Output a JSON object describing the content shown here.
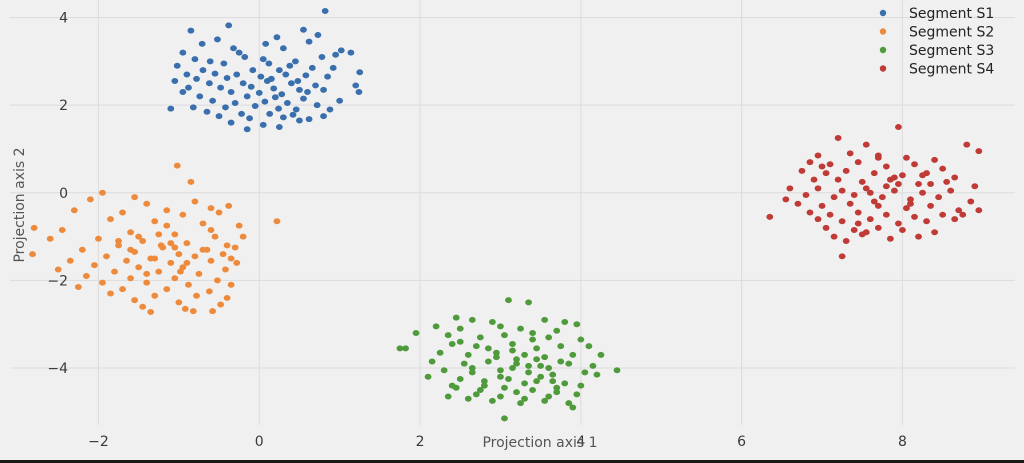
{
  "chart_data": {
    "type": "scatter",
    "title": "",
    "xlabel": "Projection axis 1",
    "ylabel": "Projection axis 2",
    "xlim": [
      -3.1,
      9.4
    ],
    "ylim": [
      -5.3,
      4.4
    ],
    "xticks": [
      -2,
      0,
      2,
      4,
      6,
      8
    ],
    "yticks": [
      -4,
      -2,
      0,
      2,
      4
    ],
    "grid": true,
    "legend_position": "top-right",
    "series": [
      {
        "name": "Segment S1",
        "color": "#3a6fad",
        "x": [
          0.82,
          -0.38,
          0.55,
          0.73,
          -0.85,
          -0.52,
          0.22,
          0.08,
          -0.71,
          -0.32,
          0.62,
          1.02,
          -0.95,
          -0.25,
          0.3,
          0.95,
          1.14,
          -0.8,
          -0.61,
          -0.18,
          0.05,
          0.45,
          0.78,
          -1.02,
          -0.44,
          0.12,
          0.38,
          0.66,
          -0.7,
          -0.08,
          0.25,
          0.92,
          1.25,
          -0.9,
          -0.55,
          -0.28,
          0.02,
          0.33,
          0.58,
          -0.78,
          -0.4,
          0.15,
          0.48,
          0.85,
          -1.05,
          -0.62,
          -0.2,
          0.1,
          0.4,
          0.7,
          1.2,
          -0.88,
          -0.48,
          -0.1,
          0.18,
          0.5,
          0.8,
          -0.95,
          -0.35,
          0.0,
          0.28,
          0.6,
          -0.74,
          -0.15,
          0.2,
          0.55,
          1.0,
          -0.58,
          -0.3,
          0.07,
          0.35,
          0.72,
          -0.82,
          -0.42,
          -0.05,
          0.24,
          0.46,
          0.88,
          -0.65,
          -0.22,
          0.13,
          0.42,
          -0.5,
          -0.12,
          0.3,
          0.62,
          1.24,
          -0.35,
          0.05,
          0.5,
          0.8,
          -1.1,
          -0.15,
          0.25,
          0.15
        ],
        "y": [
          4.15,
          3.82,
          3.72,
          3.6,
          3.7,
          3.5,
          3.55,
          3.4,
          3.4,
          3.3,
          3.45,
          3.25,
          3.2,
          3.2,
          3.3,
          3.15,
          3.2,
          3.05,
          3.0,
          3.1,
          3.05,
          3.0,
          3.1,
          2.9,
          2.95,
          2.95,
          2.9,
          2.85,
          2.8,
          2.8,
          2.8,
          2.85,
          2.75,
          2.7,
          2.72,
          2.7,
          2.65,
          2.7,
          2.68,
          2.6,
          2.62,
          2.6,
          2.55,
          2.65,
          2.55,
          2.5,
          2.5,
          2.55,
          2.5,
          2.45,
          2.45,
          2.4,
          2.4,
          2.42,
          2.38,
          2.35,
          2.35,
          2.3,
          2.3,
          2.28,
          2.25,
          2.3,
          2.2,
          2.2,
          2.18,
          2.15,
          2.1,
          2.1,
          2.05,
          2.08,
          2.05,
          2.0,
          1.95,
          1.95,
          1.98,
          1.92,
          1.9,
          1.9,
          1.85,
          1.8,
          1.8,
          1.78,
          1.75,
          1.7,
          1.72,
          1.68,
          2.3,
          1.6,
          1.55,
          1.65,
          1.75,
          1.92,
          1.45,
          1.5,
          2.6
        ]
      },
      {
        "name": "Segment S2",
        "color": "#ee8a3c",
        "x": [
          -1.02,
          -0.85,
          -1.95,
          -1.55,
          -2.1,
          -0.38,
          -0.8,
          -1.4,
          -0.6,
          -2.3,
          -1.7,
          -1.15,
          -0.95,
          -0.5,
          -2.8,
          -1.85,
          -1.3,
          -0.7,
          -0.25,
          -2.45,
          -1.6,
          -1.05,
          -0.55,
          -0.2,
          0.22,
          -2.0,
          -1.45,
          -0.9,
          -0.4,
          -2.6,
          -1.75,
          -1.2,
          -0.65,
          -0.3,
          -2.2,
          -1.55,
          -1.0,
          -0.45,
          -2.82,
          -1.9,
          -1.35,
          -0.8,
          -0.35,
          -2.35,
          -1.65,
          -1.1,
          -0.6,
          -0.28,
          -2.05,
          -1.5,
          -0.95,
          -0.42,
          -2.5,
          -1.8,
          -1.25,
          -0.75,
          -2.15,
          -1.6,
          -1.05,
          -0.52,
          -1.95,
          -1.4,
          -0.88,
          -0.35,
          -2.25,
          -1.7,
          -1.15,
          -0.62,
          -1.85,
          -1.3,
          -0.78,
          -0.4,
          -1.55,
          -1.0,
          -0.48,
          -1.45,
          -0.92,
          -0.58,
          -1.35,
          -0.82,
          -1.22,
          -0.7,
          -1.5,
          -1.1,
          -0.98,
          -1.4,
          -1.25,
          -0.9,
          -1.6,
          -1.05,
          -0.6,
          -1.15,
          -1.75,
          -1.3
        ],
        "y": [
          0.62,
          0.25,
          0.0,
          -0.1,
          -0.15,
          -0.3,
          -0.2,
          -0.25,
          -0.35,
          -0.4,
          -0.45,
          -0.4,
          -0.5,
          -0.45,
          -0.8,
          -0.6,
          -0.65,
          -0.7,
          -0.75,
          -0.85,
          -0.9,
          -0.95,
          -1.0,
          -1.0,
          -0.65,
          -1.05,
          -1.1,
          -1.15,
          -1.2,
          -1.05,
          -1.2,
          -1.25,
          -1.3,
          -1.25,
          -1.3,
          -1.35,
          -1.4,
          -1.4,
          -1.4,
          -1.45,
          -1.5,
          -1.45,
          -1.5,
          -1.55,
          -1.55,
          -1.6,
          -1.55,
          -1.6,
          -1.65,
          -1.7,
          -1.7,
          -1.75,
          -1.75,
          -1.8,
          -1.8,
          -1.85,
          -1.9,
          -1.95,
          -1.95,
          -2.0,
          -2.05,
          -2.05,
          -2.1,
          -2.1,
          -2.15,
          -2.2,
          -2.2,
          -2.25,
          -2.3,
          -2.35,
          -2.35,
          -2.4,
          -2.45,
          -2.5,
          -2.55,
          -2.6,
          -2.65,
          -2.7,
          -2.72,
          -2.7,
          -1.2,
          -1.3,
          -1.0,
          -1.15,
          -1.8,
          -1.85,
          -0.95,
          -1.6,
          -1.3,
          -1.25,
          -0.85,
          -0.75,
          -1.1,
          -1.5
        ]
      },
      {
        "name": "Segment S3",
        "color": "#4f9b3c",
        "x": [
          3.1,
          3.35,
          2.45,
          2.65,
          2.9,
          3.55,
          3.8,
          2.2,
          2.5,
          3.0,
          3.25,
          3.7,
          3.95,
          2.35,
          2.75,
          3.05,
          3.4,
          3.6,
          4.0,
          1.95,
          2.4,
          2.7,
          3.15,
          3.45,
          3.75,
          4.1,
          2.25,
          2.6,
          2.95,
          3.3,
          3.55,
          3.9,
          4.25,
          1.75,
          2.15,
          2.55,
          2.85,
          3.2,
          3.5,
          3.85,
          4.15,
          2.3,
          2.65,
          3.0,
          3.35,
          3.65,
          4.05,
          2.1,
          2.5,
          2.8,
          3.1,
          3.45,
          3.8,
          4.2,
          2.45,
          2.75,
          3.05,
          3.4,
          3.7,
          4.0,
          2.35,
          2.7,
          3.0,
          3.3,
          3.6,
          3.95,
          2.6,
          2.9,
          3.25,
          3.55,
          3.85,
          2.5,
          2.85,
          3.15,
          3.45,
          3.75,
          2.65,
          3.0,
          3.3,
          3.65,
          2.8,
          3.2,
          3.5,
          3.9,
          3.05,
          3.4,
          2.95,
          3.35,
          3.6,
          3.2,
          3.7,
          2.4,
          1.82,
          4.45,
          3.15
        ],
        "y": [
          -2.45,
          -2.5,
          -2.85,
          -2.9,
          -2.95,
          -2.9,
          -2.95,
          -3.05,
          -3.1,
          -3.05,
          -3.1,
          -3.15,
          -3.0,
          -3.25,
          -3.3,
          -3.25,
          -3.35,
          -3.3,
          -3.35,
          -3.2,
          -3.45,
          -3.5,
          -3.45,
          -3.55,
          -3.5,
          -3.5,
          -3.65,
          -3.7,
          -3.65,
          -3.7,
          -3.75,
          -3.7,
          -3.7,
          -3.55,
          -3.85,
          -3.9,
          -3.85,
          -3.9,
          -3.95,
          -3.9,
          -3.95,
          -4.05,
          -4.1,
          -4.05,
          -4.1,
          -4.15,
          -4.1,
          -4.2,
          -4.25,
          -4.3,
          -4.25,
          -4.3,
          -4.35,
          -4.15,
          -4.45,
          -4.5,
          -4.45,
          -4.5,
          -4.55,
          -4.4,
          -4.65,
          -4.6,
          -4.65,
          -4.7,
          -4.65,
          -4.6,
          -4.7,
          -4.75,
          -4.8,
          -4.75,
          -4.8,
          -3.4,
          -3.55,
          -3.6,
          -3.8,
          -3.85,
          -4.0,
          -4.2,
          -4.35,
          -4.3,
          -4.4,
          -4.55,
          -4.2,
          -4.9,
          -5.15,
          -3.2,
          -3.75,
          -3.95,
          -4.0,
          -3.8,
          -4.45,
          -4.4,
          -3.55,
          -4.05,
          -4.0
        ]
      },
      {
        "name": "Segment S4",
        "color": "#c03a36",
        "x": [
          7.95,
          7.2,
          7.55,
          6.95,
          7.35,
          7.7,
          8.05,
          8.4,
          8.8,
          6.85,
          7.1,
          7.45,
          7.8,
          8.15,
          8.5,
          8.95,
          6.75,
          7.05,
          7.3,
          7.65,
          8.0,
          8.3,
          8.65,
          6.9,
          7.2,
          7.5,
          7.85,
          8.2,
          8.55,
          8.9,
          6.6,
          6.95,
          7.25,
          7.55,
          7.9,
          8.25,
          8.6,
          6.8,
          7.15,
          7.4,
          7.75,
          8.1,
          8.45,
          8.85,
          6.7,
          7.0,
          7.35,
          7.7,
          8.05,
          8.35,
          8.7,
          6.85,
          7.1,
          7.45,
          7.8,
          8.15,
          8.5,
          6.95,
          7.25,
          7.6,
          7.95,
          8.3,
          8.65,
          7.05,
          7.4,
          7.7,
          8.0,
          8.4,
          7.15,
          7.5,
          7.85,
          8.2,
          7.3,
          7.65,
          7.95,
          8.25,
          7.45,
          7.8,
          8.1,
          7.6,
          7.9,
          6.35,
          6.55,
          8.95,
          8.75,
          7.25,
          7.7,
          8.35,
          7.0,
          7.55
        ],
        "y": [
          1.5,
          1.25,
          1.1,
          0.85,
          0.9,
          0.85,
          0.8,
          0.75,
          1.1,
          0.7,
          0.65,
          0.7,
          0.6,
          0.65,
          0.55,
          0.95,
          0.5,
          0.45,
          0.5,
          0.45,
          0.4,
          0.45,
          0.35,
          0.3,
          0.3,
          0.25,
          0.3,
          0.2,
          0.25,
          0.15,
          0.1,
          0.1,
          0.05,
          0.1,
          0.05,
          0.0,
          0.05,
          -0.05,
          -0.1,
          -0.05,
          -0.1,
          -0.15,
          -0.1,
          -0.2,
          -0.25,
          -0.3,
          -0.25,
          -0.3,
          -0.35,
          -0.3,
          -0.4,
          -0.45,
          -0.5,
          -0.45,
          -0.5,
          -0.55,
          -0.5,
          -0.6,
          -0.65,
          -0.6,
          -0.7,
          -0.65,
          -0.6,
          -0.8,
          -0.85,
          -0.8,
          -0.85,
          -0.9,
          -1.0,
          -0.95,
          -1.05,
          -1.0,
          -1.1,
          -0.2,
          0.2,
          0.4,
          -0.7,
          0.15,
          -0.25,
          0.0,
          0.35,
          -0.55,
          -0.15,
          -0.4,
          -0.5,
          -1.45,
          0.8,
          0.2,
          0.6,
          -0.9
        ]
      }
    ]
  }
}
